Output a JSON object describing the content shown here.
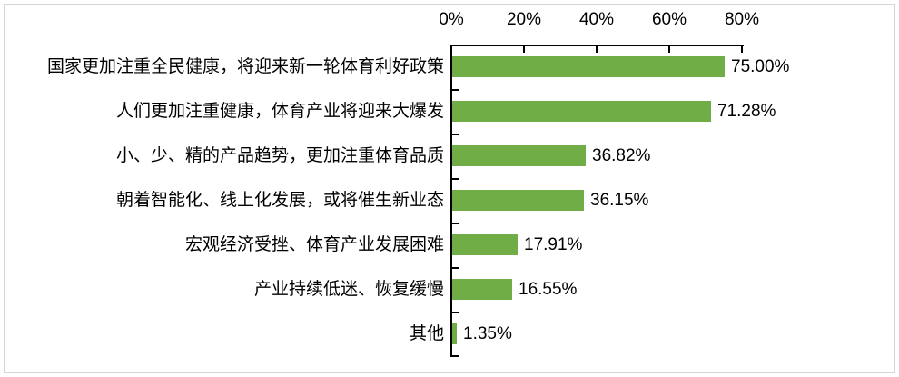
{
  "chart_data": {
    "type": "bar",
    "orientation": "horizontal",
    "title": "",
    "xlabel": "",
    "ylabel": "",
    "categories": [
      "国家更加注重全民健康，将迎来新一轮体育利好政策",
      "人们更加注重健康，体育产业将迎来大爆发",
      "小、少、精的产品趋势，更加注重体育品质",
      "朝着智能化、线上化发展，或将催生新业态",
      "宏观经济受挫、体育产业发展困难",
      "产业持续低迷、恢复缓慢",
      "其他"
    ],
    "values": [
      75.0,
      71.28,
      36.82,
      36.15,
      17.91,
      16.55,
      1.35
    ],
    "value_labels": [
      "75.00%",
      "71.28%",
      "36.82%",
      "36.15%",
      "17.91%",
      "16.55%",
      "1.35%"
    ],
    "x_ticks": [
      "0%",
      "20%",
      "40%",
      "60%",
      "80%"
    ],
    "x_tick_values": [
      0,
      20,
      40,
      60,
      80
    ],
    "xlim": [
      0,
      80
    ],
    "grid": false,
    "legend": null,
    "colors": {
      "bar": "#70AD47",
      "axis": "#000000",
      "text": "#000000",
      "frame_border": "#d6d6d6",
      "background": "#ffffff"
    }
  }
}
